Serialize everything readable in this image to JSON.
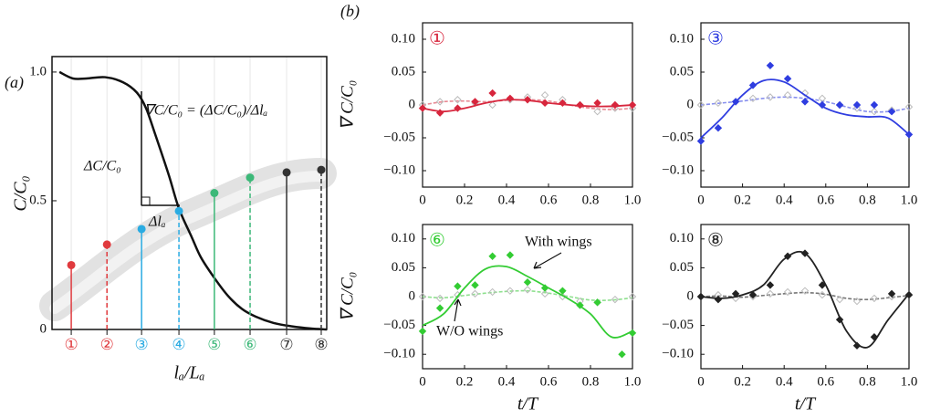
{
  "chart_data": [
    {
      "type": "line",
      "panel_label": "(a)",
      "ylabel": "C/C₀",
      "xlabel": "lₐ/Lₐ",
      "annotations": [
        "∇C/C₀ = (ΔC/C₀)/Δlₐ",
        "ΔC/C₀",
        "Δlₐ"
      ],
      "xlim": [
        0,
        1
      ],
      "ylim": [
        0,
        1.06
      ],
      "yticks": [
        0,
        0.5,
        {
          "value": 1,
          "label": "1.0"
        }
      ],
      "color": "#111111",
      "x": [
        0.027,
        0.076,
        0.126,
        0.193,
        0.259,
        0.309,
        0.342,
        0.375,
        0.425,
        0.462,
        0.508,
        0.542,
        0.591,
        0.641,
        0.691,
        0.741,
        0.807,
        0.874,
        0.94,
        1.0
      ],
      "values": [
        1.0,
        0.975,
        0.975,
        0.98,
        0.96,
        0.92,
        0.86,
        0.76,
        0.6,
        0.47,
        0.36,
        0.28,
        0.2,
        0.13,
        0.08,
        0.05,
        0.025,
        0.012,
        0.004,
        0.0
      ],
      "stations": {
        "labels": [
          "①",
          "②",
          "③",
          "④",
          "⑤",
          "⑥",
          "⑦",
          "⑧"
        ],
        "x": [
          0.07,
          0.2,
          0.326,
          0.462,
          0.591,
          0.721,
          0.854,
          0.98
        ],
        "values": [
          0.25,
          0.33,
          0.39,
          0.46,
          0.53,
          0.59,
          0.61,
          0.62
        ],
        "colors": [
          "#e03a3e",
          "#e03a3e",
          "#29abe2",
          "#29abe2",
          "#3cb878",
          "#3cb878",
          "#333333",
          "#333333"
        ],
        "dashed": [
          false,
          true,
          false,
          true,
          false,
          true,
          false,
          true
        ]
      }
    },
    {
      "type": "scatter",
      "panel_label": "(b)",
      "station": "①",
      "ylabel": "∇ C/C₀",
      "color": "#d7263d",
      "xlim": [
        0,
        1
      ],
      "ylim": [
        -0.125,
        0.125
      ],
      "xticks": [
        0,
        0.2,
        0.4,
        0.6,
        0.8,
        {
          "value": 1,
          "label": "1.0"
        }
      ],
      "yticks": [
        {
          "value": 0.1,
          "label": "0.10"
        },
        0.05,
        0,
        {
          "value": -0.05,
          "label": "−0.05"
        },
        {
          "value": -0.1,
          "label": "−0.10"
        }
      ],
      "series": [
        {
          "color": "#d7263d",
          "x": [
            0,
            0.083,
            0.167,
            0.25,
            0.333,
            0.417,
            0.5,
            0.583,
            0.667,
            0.75,
            0.833,
            0.917,
            1
          ],
          "values": [
            -0.005,
            -0.012,
            -0.005,
            0.005,
            0.018,
            0.01,
            0.008,
            0.003,
            0.003,
            0,
            0.003,
            0,
            0
          ],
          "fit_x": [
            0,
            0.1,
            0.2,
            0.3,
            0.4,
            0.5,
            0.6,
            0.7,
            0.8,
            0.9,
            1
          ],
          "fit": [
            -0.005,
            -0.01,
            -0.005,
            0.003,
            0.008,
            0.007,
            0.003,
            0,
            -0.002,
            -0.002,
            0
          ]
        },
        {
          "color": "#e88a94",
          "marker_color": "#bbbbbb",
          "x": [
            0,
            0.083,
            0.167,
            0.25,
            0.333,
            0.417,
            0.5,
            0.583,
            0.667,
            0.75,
            0.833,
            0.917,
            1
          ],
          "values": [
            0,
            0.005,
            0.008,
            0.003,
            0,
            0.008,
            0.012,
            0.015,
            0.008,
            0,
            -0.01,
            -0.005,
            -0.005
          ],
          "fit_x": [
            0,
            0.1,
            0.2,
            0.3,
            0.4,
            0.5,
            0.6,
            0.7,
            0.8,
            0.9,
            1
          ],
          "fit": [
            0,
            0.005,
            0.006,
            0.005,
            0.007,
            0.008,
            0.006,
            0,
            -0.005,
            -0.007,
            -0.005
          ]
        }
      ]
    },
    {
      "type": "scatter",
      "station": "③",
      "color": "#2f3de0",
      "xlim": [
        0,
        1
      ],
      "ylim": [
        -0.125,
        0.125
      ],
      "xticks": [
        0,
        0.2,
        0.4,
        0.6,
        0.8,
        {
          "value": 1,
          "label": "1.0"
        }
      ],
      "yticks": [
        {
          "value": 0.1,
          "label": "0.10"
        },
        0.05,
        0,
        {
          "value": -0.05,
          "label": "−0.05"
        },
        {
          "value": -0.1,
          "label": "−0.10"
        }
      ],
      "series": [
        {
          "color": "#2f3de0",
          "x": [
            0,
            0.083,
            0.167,
            0.25,
            0.333,
            0.417,
            0.5,
            0.583,
            0.667,
            0.75,
            0.833,
            0.917,
            1
          ],
          "values": [
            -0.055,
            -0.035,
            0.005,
            0.03,
            0.06,
            0.04,
            0.005,
            0,
            0,
            0,
            0,
            -0.01,
            -0.045
          ],
          "fit_x": [
            0,
            0.1,
            0.2,
            0.3,
            0.4,
            0.5,
            0.6,
            0.7,
            0.8,
            0.9,
            1
          ],
          "fit": [
            -0.05,
            -0.02,
            0.015,
            0.037,
            0.035,
            0.015,
            -0.005,
            -0.015,
            -0.018,
            -0.02,
            -0.045
          ]
        },
        {
          "color": "#8890ee",
          "marker_color": "#bbbbbb",
          "x": [
            0,
            0.083,
            0.167,
            0.25,
            0.333,
            0.417,
            0.5,
            0.583,
            0.667,
            0.75,
            0.833,
            0.917,
            1
          ],
          "values": [
            0,
            0.003,
            0.005,
            0.01,
            0.012,
            0.015,
            0.018,
            0.01,
            0,
            -0.005,
            -0.01,
            -0.008,
            -0.003
          ],
          "fit_x": [
            0,
            0.1,
            0.2,
            0.3,
            0.4,
            0.5,
            0.6,
            0.7,
            0.8,
            0.9,
            1
          ],
          "fit": [
            0,
            0.003,
            0.006,
            0.01,
            0.012,
            0.01,
            0.005,
            -0.003,
            -0.01,
            -0.01,
            -0.005
          ]
        }
      ]
    },
    {
      "type": "scatter",
      "station": "⑥",
      "ylabel": "∇ C/C₀",
      "xlabel": "t/T",
      "color": "#33cc33",
      "annotations": [
        "With wings",
        "W/O wings"
      ],
      "xlim": [
        0,
        1
      ],
      "ylim": [
        -0.125,
        0.125
      ],
      "xticks": [
        0,
        0.2,
        0.4,
        0.6,
        0.8,
        {
          "value": 1,
          "label": "1.0"
        }
      ],
      "yticks": [
        {
          "value": 0.1,
          "label": "0.10"
        },
        0.05,
        0,
        {
          "value": -0.05,
          "label": "−0.05"
        },
        {
          "value": -0.1,
          "label": "−0.10"
        }
      ],
      "series": [
        {
          "color": "#33cc33",
          "x": [
            0,
            0.083,
            0.167,
            0.25,
            0.333,
            0.417,
            0.5,
            0.583,
            0.667,
            0.75,
            0.833,
            0.95,
            1
          ],
          "values": [
            -0.06,
            -0.02,
            0.018,
            0.02,
            0.07,
            0.072,
            0.025,
            0.015,
            0.01,
            -0.015,
            -0.01,
            -0.1,
            -0.063
          ],
          "fit_x": [
            0,
            0.1,
            0.2,
            0.3,
            0.4,
            0.5,
            0.6,
            0.7,
            0.8,
            0.9,
            1
          ],
          "fit": [
            -0.05,
            -0.03,
            0.015,
            0.048,
            0.052,
            0.035,
            0.015,
            -0.005,
            -0.03,
            -0.07,
            -0.06
          ]
        },
        {
          "color": "#8fe08f",
          "marker_color": "#bbbbbb",
          "x": [
            0,
            0.083,
            0.167,
            0.25,
            0.333,
            0.417,
            0.5,
            0.583,
            0.667,
            0.75,
            0.833,
            0.917,
            1
          ],
          "values": [
            0,
            -0.003,
            0.003,
            0.005,
            0.008,
            0.01,
            0.012,
            0.005,
            0,
            -0.008,
            -0.01,
            -0.005,
            0
          ],
          "fit_x": [
            0,
            0.1,
            0.2,
            0.3,
            0.4,
            0.5,
            0.6,
            0.7,
            0.8,
            0.9,
            1
          ],
          "fit": [
            0,
            -0.002,
            0.002,
            0.006,
            0.009,
            0.01,
            0.006,
            0,
            -0.006,
            -0.006,
            -0.002
          ]
        }
      ]
    },
    {
      "type": "scatter",
      "station": "⑧",
      "xlabel": "t/T",
      "color": "#222222",
      "xlim": [
        0,
        1
      ],
      "ylim": [
        -0.125,
        0.125
      ],
      "xticks": [
        0,
        0.2,
        0.4,
        0.6,
        0.8,
        {
          "value": 1,
          "label": "1.0"
        }
      ],
      "yticks": [
        {
          "value": 0.1,
          "label": "0.10"
        },
        0.05,
        0,
        {
          "value": -0.05,
          "label": "−0.05"
        },
        {
          "value": -0.1,
          "label": "−0.10"
        }
      ],
      "series": [
        {
          "color": "#222222",
          "x": [
            0,
            0.083,
            0.167,
            0.25,
            0.333,
            0.417,
            0.5,
            0.583,
            0.667,
            0.75,
            0.833,
            0.917,
            1
          ],
          "values": [
            0,
            -0.005,
            0.005,
            0.003,
            0.02,
            0.07,
            0.075,
            0.02,
            -0.04,
            -0.085,
            -0.07,
            0.005,
            0.003
          ],
          "fit_x": [
            0,
            0.1,
            0.2,
            0.3,
            0.4,
            0.5,
            0.6,
            0.7,
            0.8,
            0.9,
            1
          ],
          "fit": [
            0,
            -0.003,
            0.003,
            0.02,
            0.065,
            0.075,
            0.02,
            -0.06,
            -0.088,
            -0.04,
            0.005
          ]
        },
        {
          "color": "#777777",
          "marker_color": "#bbbbbb",
          "x": [
            0,
            0.083,
            0.167,
            0.25,
            0.333,
            0.417,
            0.5,
            0.583,
            0.667,
            0.75,
            0.833,
            0.917,
            1
          ],
          "values": [
            0,
            0.003,
            -0.003,
            0,
            0.005,
            0.008,
            0.01,
            0.003,
            -0.005,
            -0.008,
            -0.003,
            0,
            0.003
          ],
          "fit_x": [
            0,
            0.1,
            0.2,
            0.3,
            0.4,
            0.5,
            0.6,
            0.7,
            0.8,
            0.9,
            1
          ],
          "fit": [
            0,
            0.001,
            -0.001,
            0.002,
            0.005,
            0.007,
            0.004,
            -0.003,
            -0.005,
            -0.002,
            0.002
          ]
        }
      ]
    }
  ]
}
